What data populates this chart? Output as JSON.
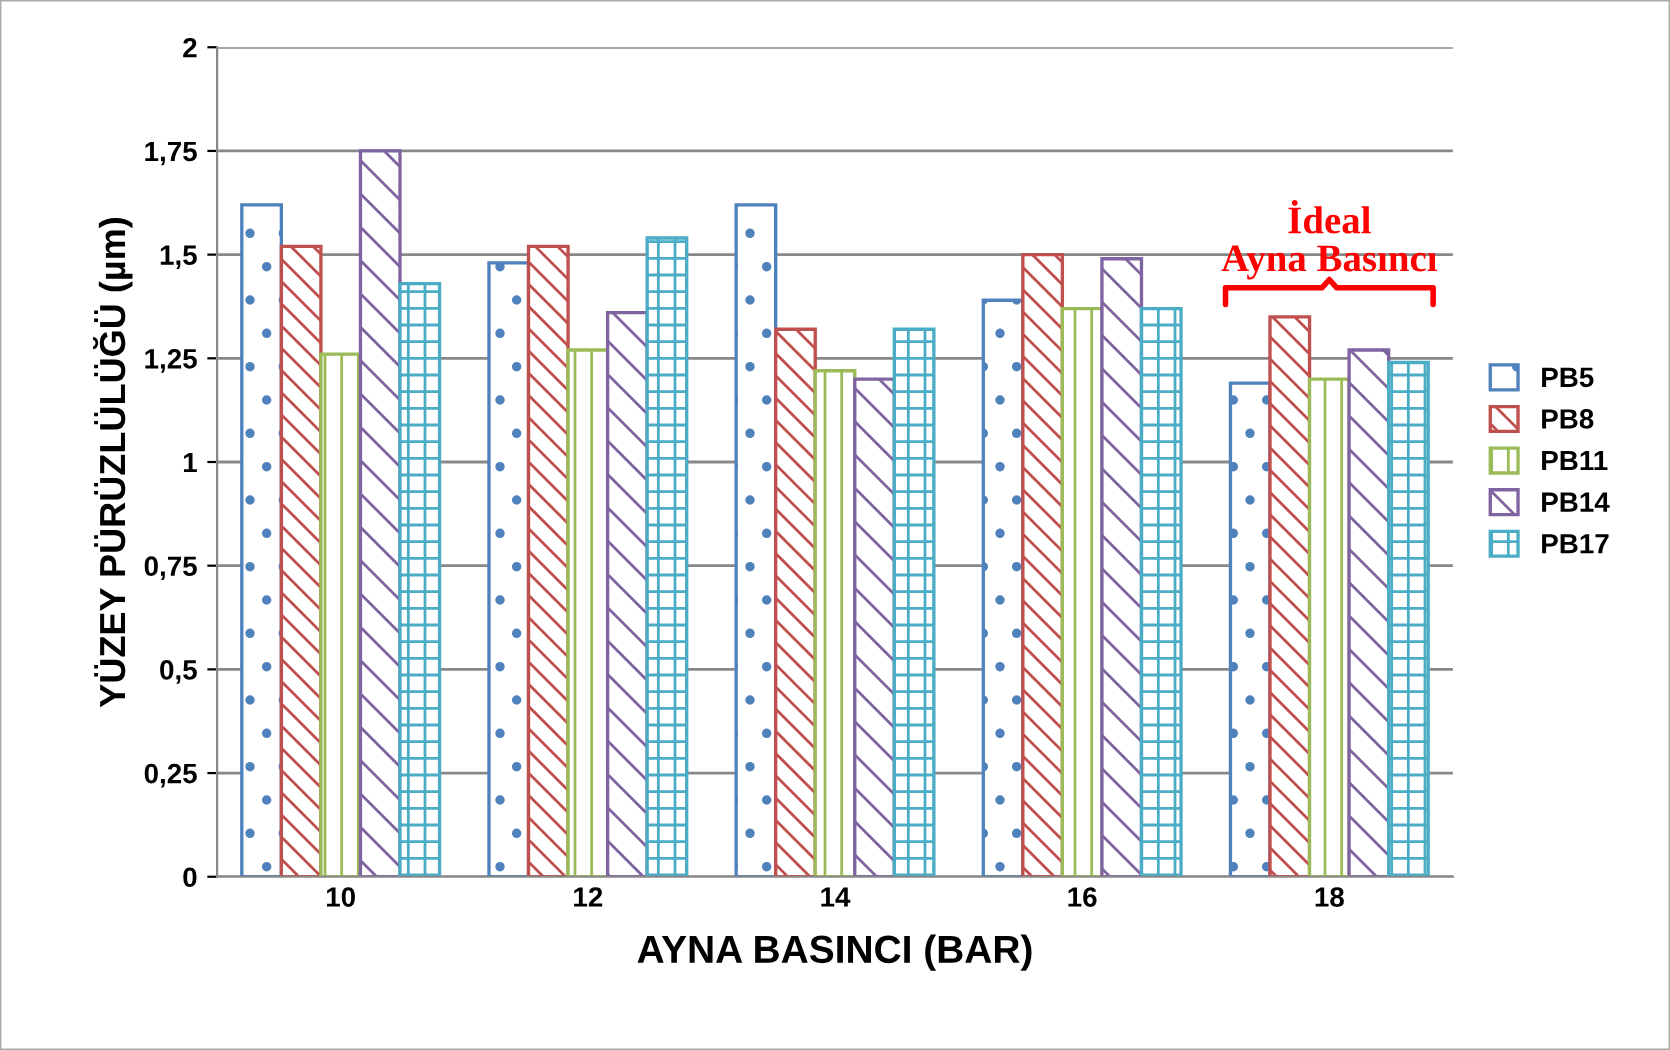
{
  "chart_data": {
    "type": "bar",
    "xlabel": "AYNA BASINCI (BAR)",
    "ylabel": "YÜZEY PÜRÜZLÜLÜĞÜ (µm)",
    "categories": [
      "10",
      "12",
      "14",
      "16",
      "18"
    ],
    "series": [
      {
        "name": "PB5",
        "color": "#4f81bd",
        "values": [
          1.62,
          1.48,
          1.62,
          1.39,
          1.19
        ]
      },
      {
        "name": "PB8",
        "color": "#c0504d",
        "values": [
          1.52,
          1.52,
          1.32,
          1.5,
          1.35
        ]
      },
      {
        "name": "PB11",
        "color": "#9bbb59",
        "values": [
          1.26,
          1.27,
          1.22,
          1.37,
          1.2
        ]
      },
      {
        "name": "PB14",
        "color": "#8064a2",
        "values": [
          1.75,
          1.36,
          1.2,
          1.49,
          1.27
        ]
      },
      {
        "name": "PB17",
        "color": "#4bacc6",
        "values": [
          1.43,
          1.54,
          1.32,
          1.37,
          1.24
        ]
      }
    ],
    "ylim": [
      0,
      2
    ],
    "yticks": [
      0,
      {
        "value": 0.25,
        "label": "0,25"
      },
      {
        "value": 0.5,
        "label": "0,5"
      },
      {
        "value": 0.75,
        "label": "0,75"
      },
      1,
      {
        "value": 1.25,
        "label": "1,25"
      },
      {
        "value": 1.5,
        "label": "1,5"
      },
      {
        "value": 1.75,
        "label": "1,75"
      },
      2
    ],
    "grid": "y",
    "legend": "right",
    "annotations": [
      "İdeal\nAyna Basıncı"
    ]
  }
}
